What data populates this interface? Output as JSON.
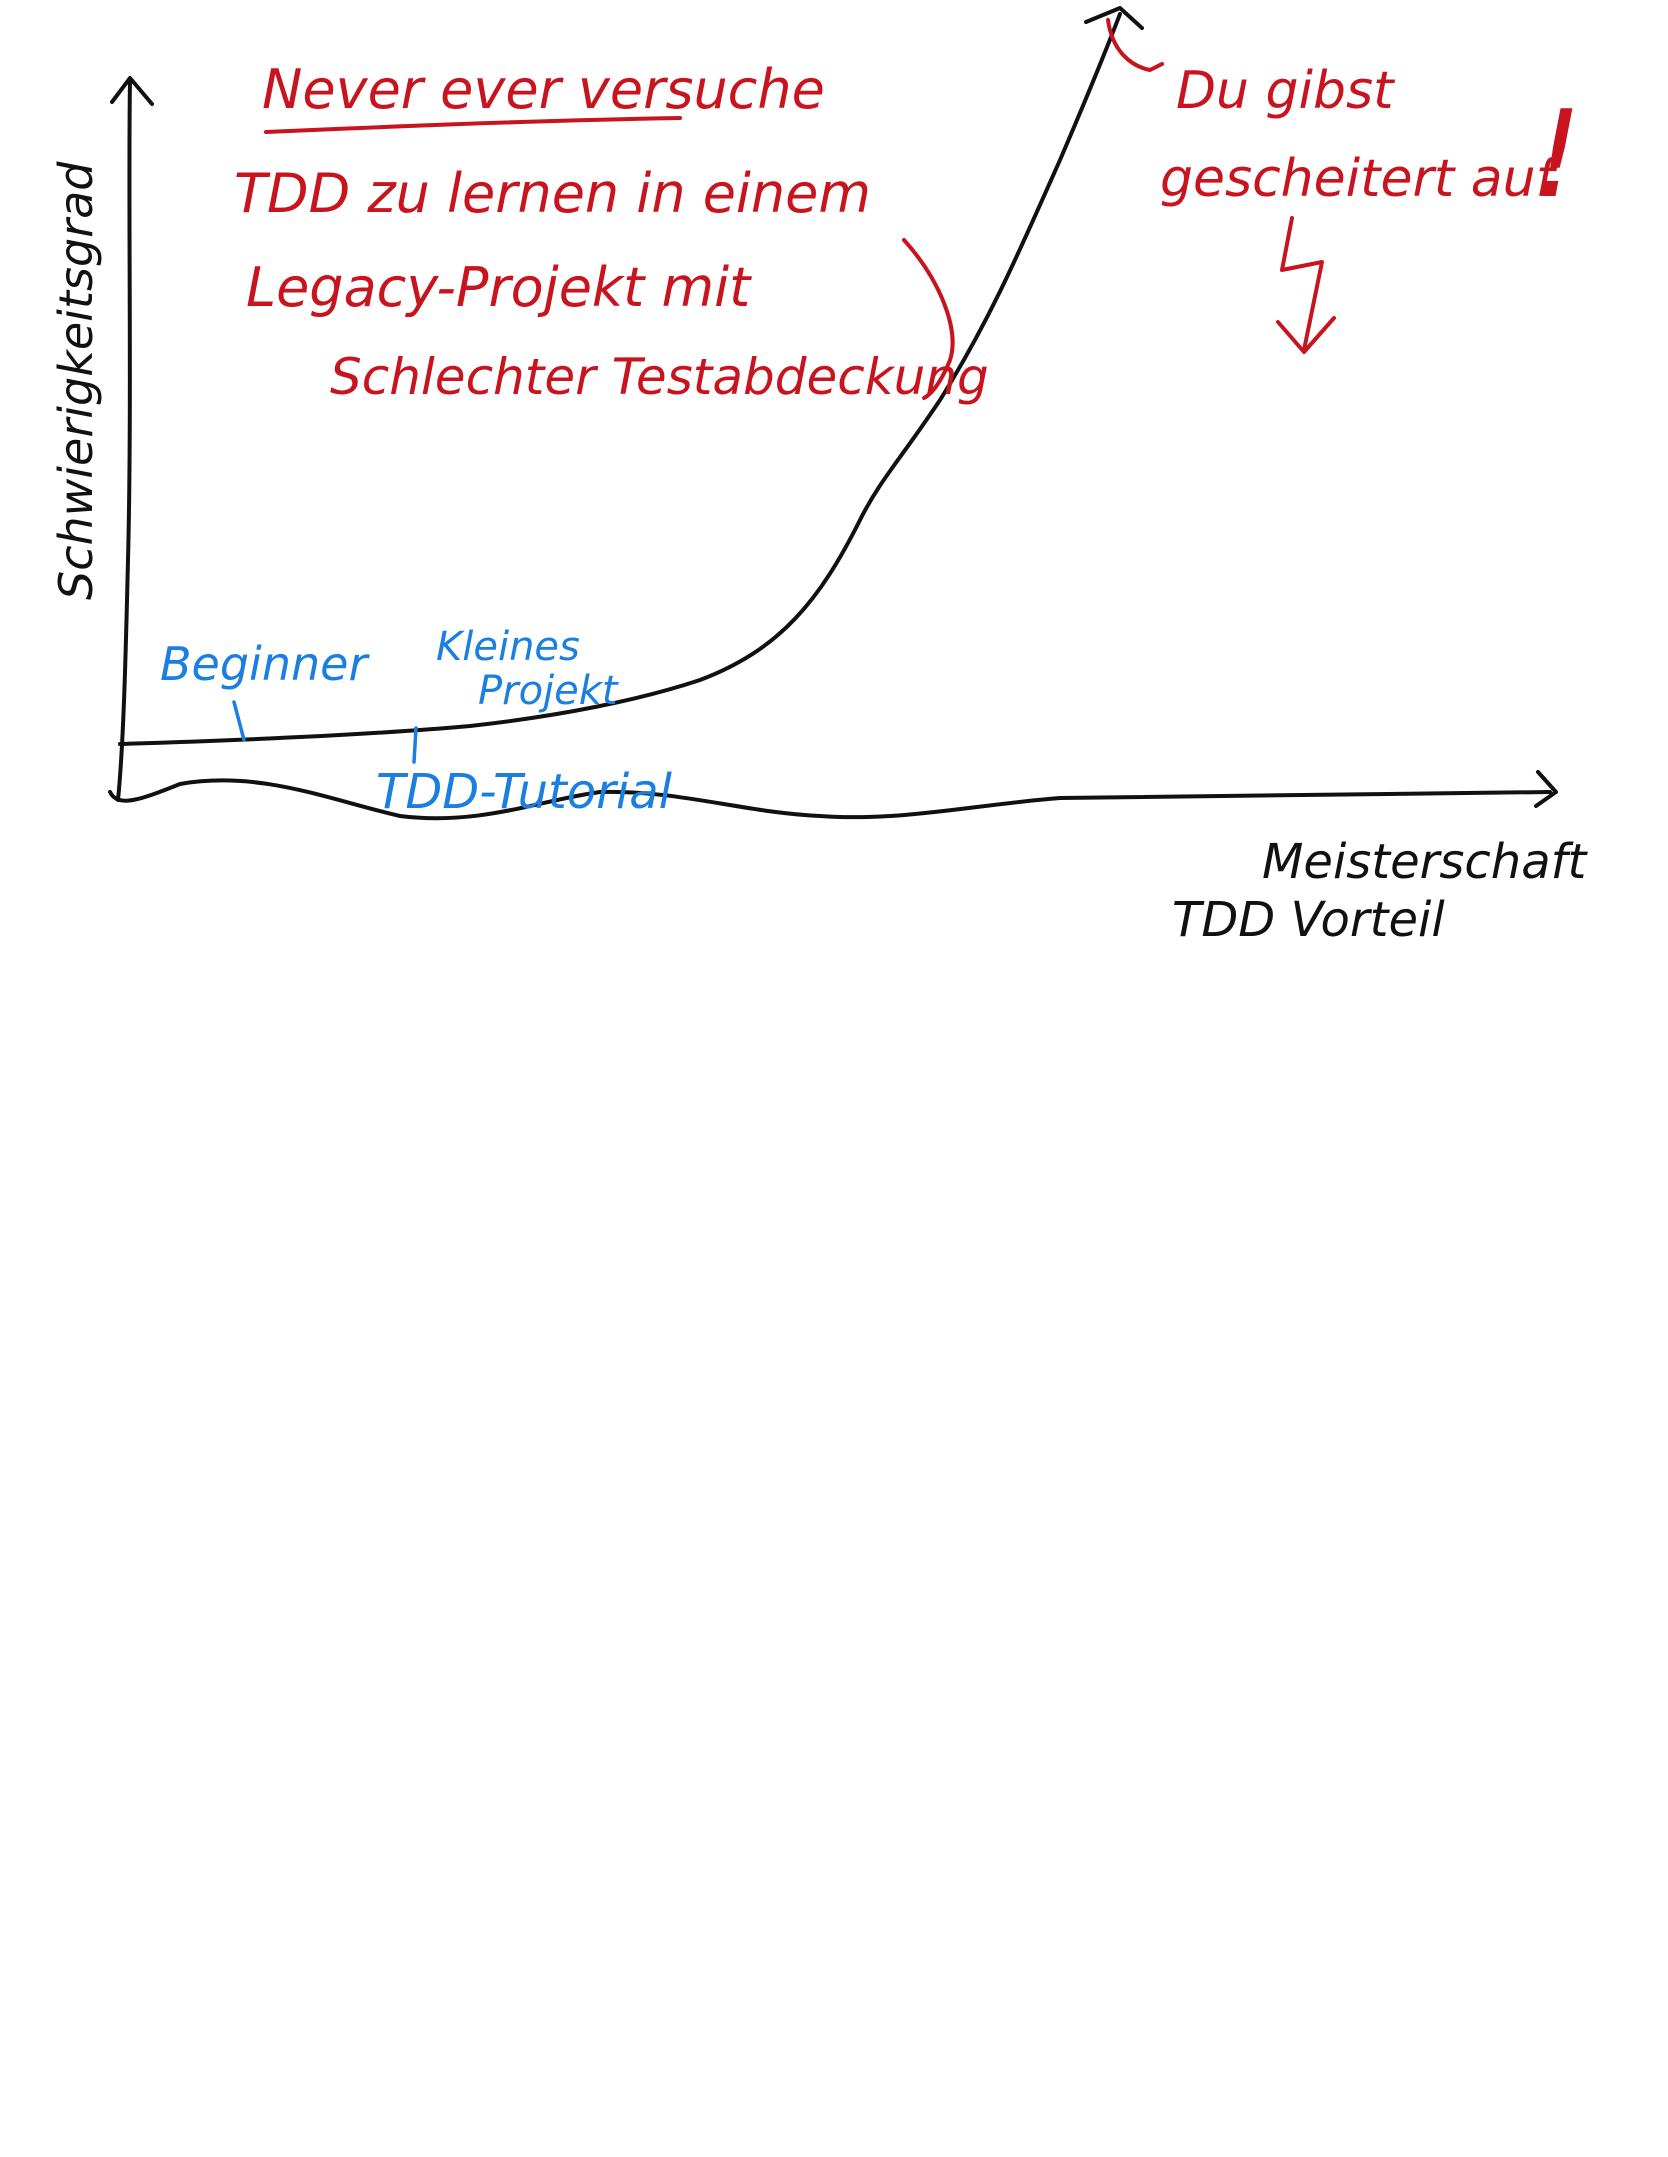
{
  "axes": {
    "y_label": "Schwierigkeitsgrad",
    "x_label_line1": "Meisterschaft",
    "x_label_line2": "TDD Vorteil"
  },
  "warning": {
    "line1": "Never ever versuche",
    "line2": "TDD zu lernen   in einem",
    "line3": "Legacy-Projekt mit",
    "line4": "Schlechter Testabdeckung"
  },
  "outcome": {
    "line1": "Du gibst",
    "line2": "gescheitert auf",
    "exclamation": "!"
  },
  "milestones": {
    "beginner": "Beginner",
    "small_project_line1": "Kleines",
    "small_project_line2": "Projekt",
    "tutorial": "TDD-Tutorial"
  },
  "colors": {
    "axis": "#111111",
    "warning": "#c8141e",
    "milestone": "#1a7fe0"
  }
}
